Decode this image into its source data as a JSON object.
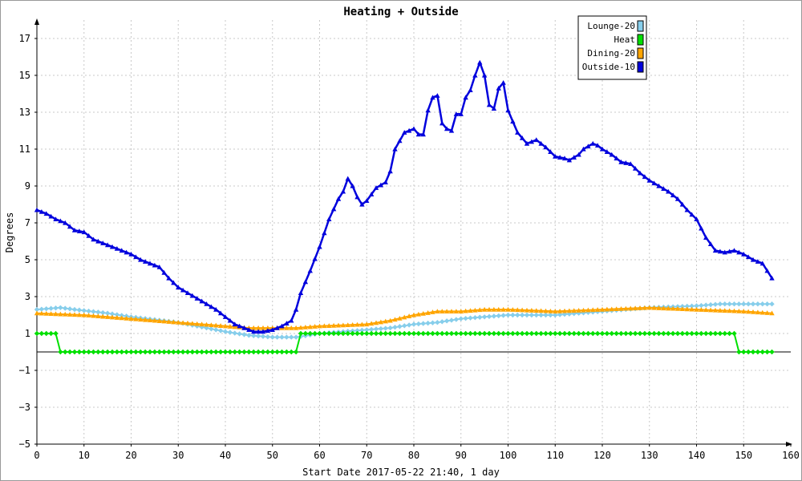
{
  "chart_data": {
    "type": "line",
    "title": "Heating + Outside",
    "xlabel": "Start Date 2017-05-22 21:40, 1 day",
    "ylabel": "Degrees",
    "xlim": [
      0,
      160
    ],
    "ylim": [
      -5,
      18
    ],
    "xticks": [
      0,
      10,
      20,
      30,
      40,
      50,
      60,
      70,
      80,
      90,
      100,
      110,
      120,
      130,
      140,
      150,
      160
    ],
    "yticks": [
      -5,
      -3,
      -1,
      1,
      3,
      5,
      7,
      9,
      11,
      13,
      15,
      17
    ],
    "grid": true,
    "legend_position": "top-right",
    "series": [
      {
        "name": "Lounge-20",
        "color": "#87ceeb",
        "marker": "diamond",
        "points": [
          [
            0,
            2.3
          ],
          [
            5,
            2.4
          ],
          [
            8,
            2.3
          ],
          [
            15,
            2.1
          ],
          [
            20,
            1.9
          ],
          [
            30,
            1.6
          ],
          [
            40,
            1.1
          ],
          [
            45,
            0.9
          ],
          [
            50,
            0.8
          ],
          [
            55,
            0.8
          ],
          [
            60,
            1.0
          ],
          [
            70,
            1.2
          ],
          [
            75,
            1.3
          ],
          [
            80,
            1.5
          ],
          [
            85,
            1.6
          ],
          [
            90,
            1.8
          ],
          [
            95,
            1.9
          ],
          [
            100,
            2.0
          ],
          [
            110,
            2.0
          ],
          [
            120,
            2.2
          ],
          [
            130,
            2.4
          ],
          [
            140,
            2.5
          ],
          [
            145,
            2.6
          ],
          [
            150,
            2.6
          ],
          [
            156,
            2.6
          ]
        ]
      },
      {
        "name": "Heat",
        "color": "#00e000",
        "marker": "diamond",
        "points": [
          [
            0,
            1
          ],
          [
            4,
            1
          ],
          [
            5,
            0
          ],
          [
            55,
            0
          ],
          [
            56,
            1
          ],
          [
            148,
            1
          ],
          [
            149,
            0
          ],
          [
            156,
            0
          ]
        ]
      },
      {
        "name": "Dining-20",
        "color": "#ffa500",
        "marker": "triangle",
        "points": [
          [
            0,
            2.1
          ],
          [
            10,
            2.0
          ],
          [
            20,
            1.8
          ],
          [
            30,
            1.6
          ],
          [
            40,
            1.4
          ],
          [
            45,
            1.3
          ],
          [
            50,
            1.3
          ],
          [
            55,
            1.3
          ],
          [
            60,
            1.4
          ],
          [
            70,
            1.5
          ],
          [
            75,
            1.7
          ],
          [
            80,
            2.0
          ],
          [
            85,
            2.2
          ],
          [
            90,
            2.2
          ],
          [
            95,
            2.3
          ],
          [
            100,
            2.3
          ],
          [
            110,
            2.2
          ],
          [
            120,
            2.3
          ],
          [
            130,
            2.4
          ],
          [
            140,
            2.3
          ],
          [
            150,
            2.2
          ],
          [
            156,
            2.1
          ]
        ]
      },
      {
        "name": "Outside-10",
        "color": "#0000dd",
        "marker": "triangle",
        "points": [
          [
            0,
            7.7
          ],
          [
            2,
            7.5
          ],
          [
            4,
            7.2
          ],
          [
            6,
            7.0
          ],
          [
            8,
            6.6
          ],
          [
            10,
            6.5
          ],
          [
            12,
            6.1
          ],
          [
            14,
            5.9
          ],
          [
            16,
            5.7
          ],
          [
            18,
            5.5
          ],
          [
            20,
            5.3
          ],
          [
            22,
            5.0
          ],
          [
            24,
            4.8
          ],
          [
            26,
            4.6
          ],
          [
            28,
            4.0
          ],
          [
            30,
            3.5
          ],
          [
            32,
            3.2
          ],
          [
            34,
            2.9
          ],
          [
            36,
            2.6
          ],
          [
            38,
            2.3
          ],
          [
            40,
            1.9
          ],
          [
            42,
            1.5
          ],
          [
            44,
            1.3
          ],
          [
            46,
            1.1
          ],
          [
            48,
            1.1
          ],
          [
            50,
            1.2
          ],
          [
            52,
            1.4
          ],
          [
            54,
            1.7
          ],
          [
            55,
            2.3
          ],
          [
            56,
            3.2
          ],
          [
            58,
            4.4
          ],
          [
            60,
            5.7
          ],
          [
            62,
            7.2
          ],
          [
            64,
            8.3
          ],
          [
            65,
            8.7
          ],
          [
            66,
            9.4
          ],
          [
            67,
            9.0
          ],
          [
            68,
            8.4
          ],
          [
            69,
            8.0
          ],
          [
            70,
            8.2
          ],
          [
            72,
            8.9
          ],
          [
            74,
            9.2
          ],
          [
            75,
            9.8
          ],
          [
            76,
            11.0
          ],
          [
            78,
            11.9
          ],
          [
            80,
            12.1
          ],
          [
            81,
            11.8
          ],
          [
            82,
            11.8
          ],
          [
            83,
            13.1
          ],
          [
            84,
            13.8
          ],
          [
            85,
            13.9
          ],
          [
            86,
            12.4
          ],
          [
            87,
            12.1
          ],
          [
            88,
            12.0
          ],
          [
            89,
            12.9
          ],
          [
            90,
            12.9
          ],
          [
            91,
            13.8
          ],
          [
            92,
            14.2
          ],
          [
            93,
            15.0
          ],
          [
            94,
            15.7
          ],
          [
            95,
            15.0
          ],
          [
            96,
            13.4
          ],
          [
            97,
            13.2
          ],
          [
            98,
            14.3
          ],
          [
            99,
            14.6
          ],
          [
            100,
            13.1
          ],
          [
            101,
            12.5
          ],
          [
            102,
            11.9
          ],
          [
            103,
            11.6
          ],
          [
            104,
            11.3
          ],
          [
            106,
            11.5
          ],
          [
            108,
            11.1
          ],
          [
            110,
            10.6
          ],
          [
            112,
            10.5
          ],
          [
            113,
            10.4
          ],
          [
            115,
            10.7
          ],
          [
            116,
            11.0
          ],
          [
            118,
            11.3
          ],
          [
            119,
            11.2
          ],
          [
            120,
            11.0
          ],
          [
            122,
            10.7
          ],
          [
            124,
            10.3
          ],
          [
            126,
            10.2
          ],
          [
            128,
            9.7
          ],
          [
            130,
            9.3
          ],
          [
            132,
            9.0
          ],
          [
            134,
            8.7
          ],
          [
            136,
            8.3
          ],
          [
            138,
            7.7
          ],
          [
            140,
            7.2
          ],
          [
            142,
            6.2
          ],
          [
            144,
            5.5
          ],
          [
            146,
            5.4
          ],
          [
            148,
            5.5
          ],
          [
            150,
            5.3
          ],
          [
            152,
            5.0
          ],
          [
            154,
            4.8
          ],
          [
            156,
            4.0
          ]
        ]
      }
    ]
  }
}
